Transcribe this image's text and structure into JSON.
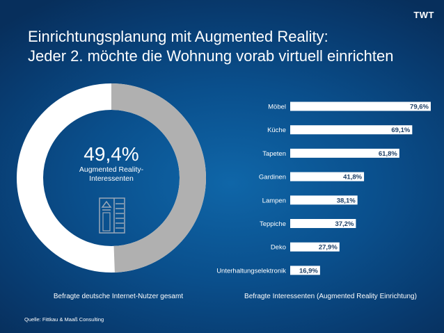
{
  "logo": "TWT",
  "title": {
    "line1": "Einrichtungsplanung mit Augmented Reality:",
    "line2": "Jeder 2. möchte die Wohnung vorab virtuell einrichten"
  },
  "donut": {
    "value_label": "49,4%",
    "caption": "Augmented Reality-Interessenten",
    "share": 49.4,
    "color_interest": "#b0b0b0",
    "color_rest": "#ffffff",
    "icon": "cabinet-icon"
  },
  "label_left": "Befragte deutsche Internet-Nutzer gesamt",
  "label_right": "Befragte Interessenten (Augmented Reality Einrichtung)",
  "source": "Quelle: Fittkau & Maaß Consulting",
  "chart_data": [
    {
      "type": "pie",
      "values": [
        49.4,
        50.6
      ],
      "colors": [
        "#b0b0b0",
        "#ffffff"
      ]
    },
    {
      "type": "bar",
      "orientation": "horizontal",
      "categories": [
        "Möbel",
        "Küche",
        "Tapeten",
        "Gardinen",
        "Lampen",
        "Teppiche",
        "Deko",
        "Unterhaltungselektronik"
      ],
      "values": [
        79.6,
        69.1,
        61.8,
        41.8,
        38.1,
        37.2,
        27.9,
        16.9
      ],
      "value_labels": [
        "79,6%",
        "69,1%",
        "61,8%",
        "41,8%",
        "38,1%",
        "37,2%",
        "27,9%",
        "16,9%"
      ],
      "xlim": [
        0,
        80
      ],
      "bar_color": "#ffffff"
    }
  ]
}
